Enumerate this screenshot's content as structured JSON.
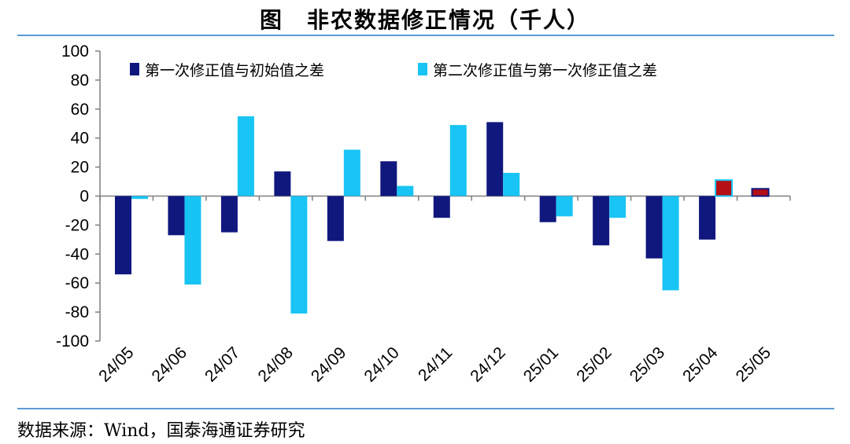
{
  "header": {
    "title": "图　非农数据修正情况（千人）"
  },
  "footer": {
    "source": "数据来源：Wind，国泰海通证券研究"
  },
  "colors": {
    "series1": "#10187e",
    "series2": "#18c4f4",
    "highlight": "#b40f14"
  },
  "chart_data": {
    "type": "bar",
    "categories": [
      "24/05",
      "24/06",
      "24/07",
      "24/08",
      "24/09",
      "24/10",
      "24/11",
      "24/12",
      "25/01",
      "25/02",
      "25/03",
      "25/04",
      "25/05"
    ],
    "series": [
      {
        "name": "第一次修正值与初始值之差",
        "values": [
          -54,
          -27,
          -25,
          17,
          -31,
          24,
          -15,
          51,
          -18,
          -34,
          -43,
          -30,
          5
        ]
      },
      {
        "name": "第二次修正值与第一次修正值之差",
        "values": [
          -2,
          -61,
          55,
          -81,
          32,
          7,
          49,
          16,
          -14,
          -15,
          -65,
          11,
          null
        ]
      }
    ],
    "highlighted": [
      {
        "series": 0,
        "category": "25/05"
      },
      {
        "series": 1,
        "category": "25/04"
      }
    ],
    "ylim": [
      -100,
      100
    ],
    "yticks": [
      100,
      80,
      60,
      40,
      20,
      0,
      -20,
      -40,
      -60,
      -80,
      -100
    ],
    "legend_position": "top",
    "grid": false
  }
}
